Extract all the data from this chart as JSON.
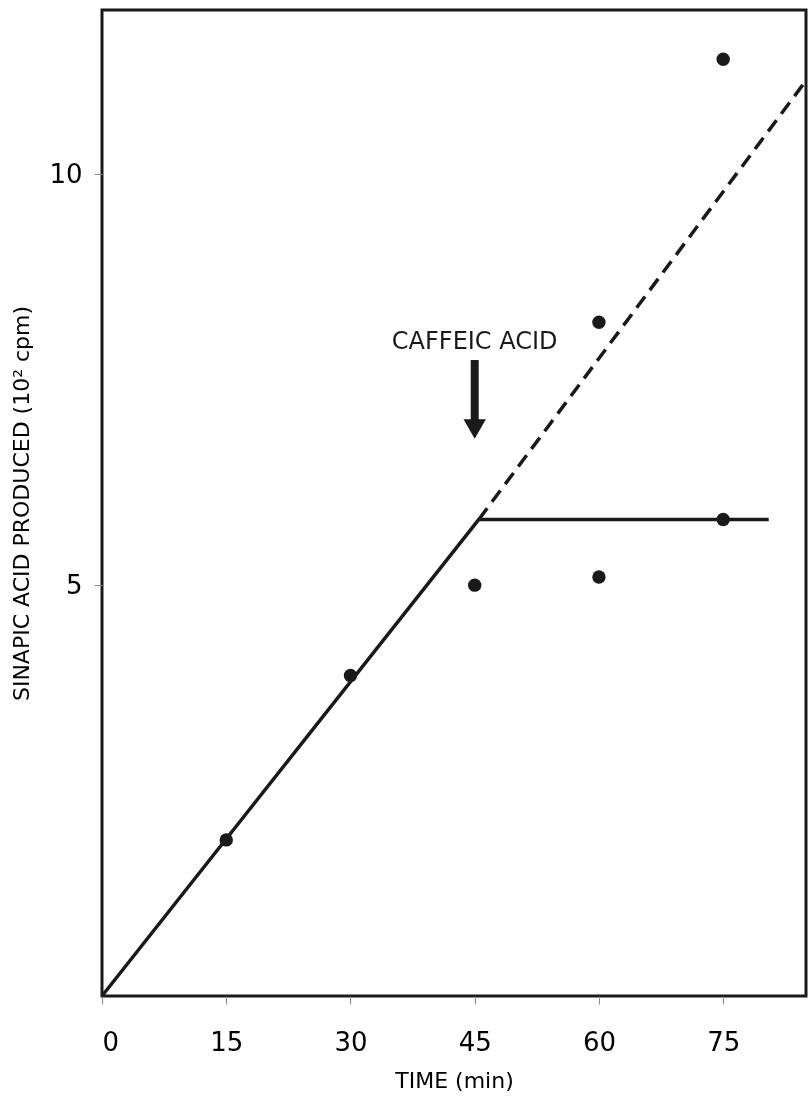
{
  "chart_data": {
    "type": "line",
    "xlabel": "TIME (min)",
    "ylabel": "SINAPIC ACID PRODUCED (10² cpm)",
    "xlim": [
      0,
      85
    ],
    "xticks": [
      0,
      15,
      30,
      45,
      60,
      75
    ],
    "ylim": [
      0,
      12
    ],
    "yticks": [
      5,
      10
    ],
    "grid": false,
    "series": [
      {
        "type": "scatter",
        "color": "#1a1a1a",
        "marker": "circle",
        "x": [
          15,
          30,
          45,
          60,
          60,
          75,
          75
        ],
        "values": [
          1.9,
          3.9,
          5.0,
          5.1,
          8.2,
          5.8,
          11.4
        ]
      },
      {
        "color": "#1a1a1a",
        "line_style": "solid",
        "marker": "none",
        "x": [
          0,
          45.5,
          80.5
        ],
        "values": [
          0,
          5.8,
          5.8
        ]
      },
      {
        "color": "#1a1a1a",
        "line_style": "dashed",
        "marker": "none",
        "x": [
          45.5,
          84.7
        ],
        "values": [
          5.8,
          11.1
        ]
      }
    ],
    "annotations": [
      {
        "text": "CAFFEIC ACID",
        "x": 45,
        "y": 6.9
      }
    ]
  }
}
